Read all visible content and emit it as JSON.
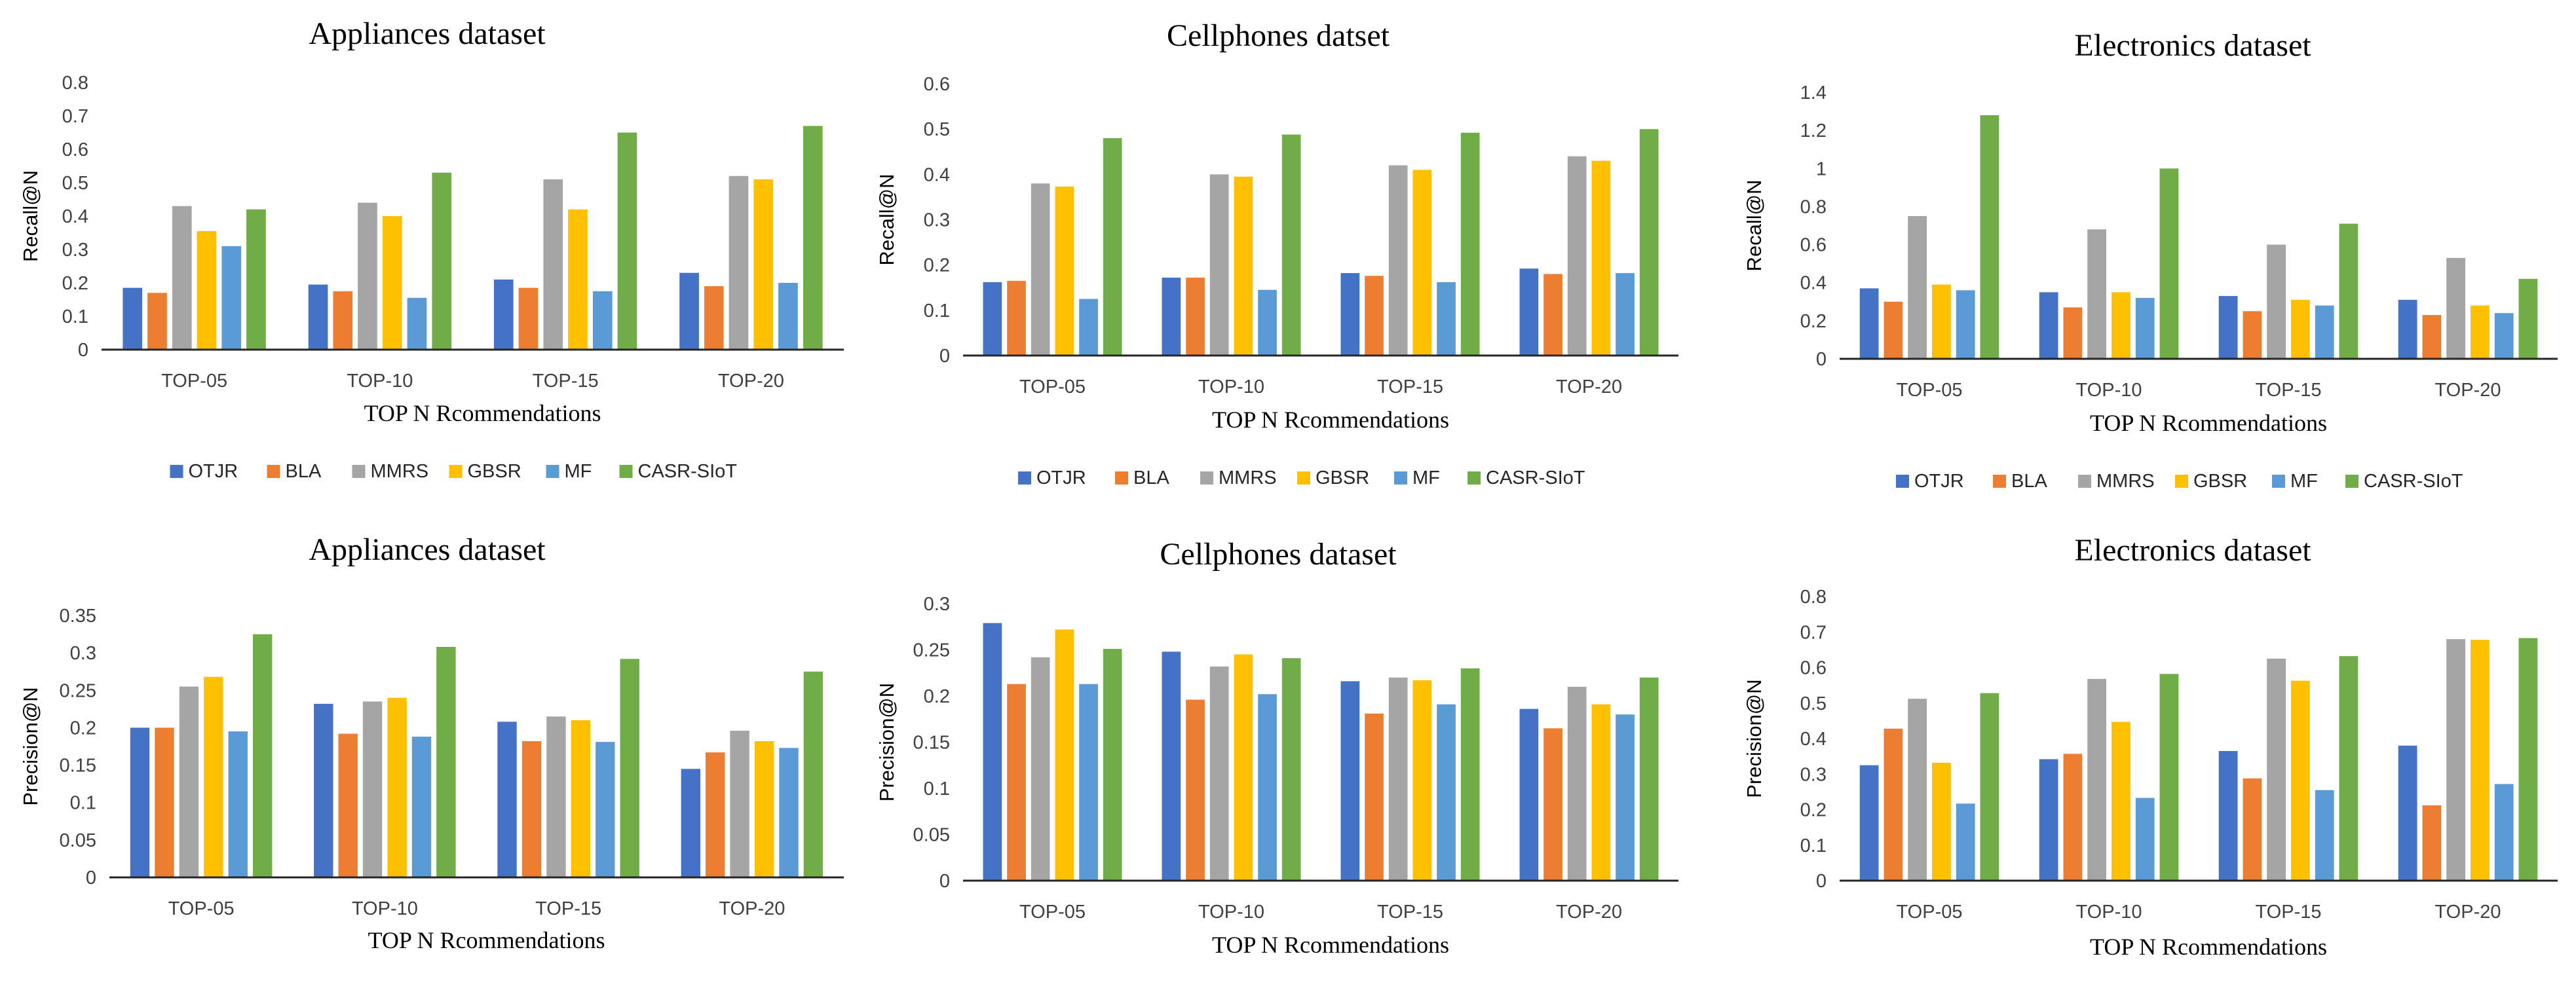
{
  "colors": {
    "OTJR": "#4472C4",
    "BLA": "#ED7D31",
    "MMRS": "#A5A5A5",
    "GBSR": "#FFC000",
    "MF": "#5B9BD5",
    "CASR-SIoT": "#70AD47"
  },
  "chart_data": [
    {
      "type": "bar",
      "title": "Appliances dataset",
      "xlabel": "TOP N Rcommendations",
      "ylabel": "Recall@N",
      "categories": [
        "TOP-05",
        "TOP-10",
        "TOP-15",
        "TOP-20"
      ],
      "yticks": [
        "0",
        "0.1",
        "0.2",
        "0.3",
        "0.4",
        "0.5",
        "0.6",
        "0.7",
        "0.8"
      ],
      "ylim": [
        0,
        0.8
      ],
      "grid": false,
      "legend": "bottom",
      "series": [
        {
          "name": "OTJR",
          "values": [
            0.185,
            0.195,
            0.21,
            0.23
          ]
        },
        {
          "name": "BLA",
          "values": [
            0.17,
            0.175,
            0.185,
            0.19
          ]
        },
        {
          "name": "MMRS",
          "values": [
            0.43,
            0.44,
            0.51,
            0.52
          ]
        },
        {
          "name": "GBSR",
          "values": [
            0.355,
            0.4,
            0.42,
            0.51
          ]
        },
        {
          "name": "MF",
          "values": [
            0.31,
            0.155,
            0.175,
            0.2
          ]
        },
        {
          "name": "CASR-SIoT",
          "values": [
            0.42,
            0.53,
            0.65,
            0.67
          ]
        }
      ]
    },
    {
      "type": "bar",
      "title": "Cellphones datset",
      "xlabel": "TOP N Rcommendations",
      "ylabel": "Recall@N",
      "categories": [
        "TOP-05",
        "TOP-10",
        "TOP-15",
        "TOP-20"
      ],
      "yticks": [
        "0",
        "0.1",
        "0.2",
        "0.3",
        "0.4",
        "0.5",
        "0.6"
      ],
      "ylim": [
        0,
        0.6
      ],
      "grid": false,
      "legend": "bottom",
      "series": [
        {
          "name": "OTJR",
          "values": [
            0.162,
            0.172,
            0.182,
            0.192
          ]
        },
        {
          "name": "BLA",
          "values": [
            0.165,
            0.172,
            0.176,
            0.18
          ]
        },
        {
          "name": "MMRS",
          "values": [
            0.38,
            0.4,
            0.42,
            0.44
          ]
        },
        {
          "name": "GBSR",
          "values": [
            0.373,
            0.395,
            0.41,
            0.43
          ]
        },
        {
          "name": "MF",
          "values": [
            0.125,
            0.145,
            0.162,
            0.182
          ]
        },
        {
          "name": "CASR-SIoT",
          "values": [
            0.48,
            0.488,
            0.492,
            0.5
          ]
        }
      ]
    },
    {
      "type": "bar",
      "title": "Electronics dataset",
      "xlabel": "TOP N Rcommendations",
      "ylabel": "Recall@N",
      "categories": [
        "TOP-05",
        "TOP-10",
        "TOP-15",
        "TOP-20"
      ],
      "yticks": [
        "0",
        "0.2",
        "0.4",
        "0.6",
        "0.8",
        "1",
        "1.2",
        "1.4"
      ],
      "ylim": [
        0,
        1.4
      ],
      "grid": false,
      "legend": "bottom",
      "series": [
        {
          "name": "OTJR",
          "values": [
            0.37,
            0.35,
            0.33,
            0.31
          ]
        },
        {
          "name": "BLA",
          "values": [
            0.3,
            0.27,
            0.25,
            0.23
          ]
        },
        {
          "name": "MMRS",
          "values": [
            0.75,
            0.68,
            0.6,
            0.53
          ]
        },
        {
          "name": "GBSR",
          "values": [
            0.39,
            0.35,
            0.31,
            0.28
          ]
        },
        {
          "name": "MF",
          "values": [
            0.36,
            0.32,
            0.28,
            0.24
          ]
        },
        {
          "name": "CASR-SIoT",
          "values": [
            1.28,
            1.0,
            0.71,
            0.42
          ]
        }
      ]
    },
    {
      "type": "bar",
      "title": "Appliances dataset",
      "xlabel": "TOP N Rcommendations",
      "ylabel": "Precision@N",
      "categories": [
        "TOP-05",
        "TOP-10",
        "TOP-15",
        "TOP-20"
      ],
      "yticks": [
        "0",
        "0.05",
        "0.1",
        "0.15",
        "0.2",
        "0.25",
        "0.3",
        "0.35"
      ],
      "ylim": [
        0,
        0.35
      ],
      "grid": false,
      "series": [
        {
          "name": "OTJR",
          "values": [
            0.2,
            0.232,
            0.208,
            0.145
          ]
        },
        {
          "name": "BLA",
          "values": [
            0.2,
            0.192,
            0.182,
            0.167
          ]
        },
        {
          "name": "MMRS",
          "values": [
            0.255,
            0.235,
            0.215,
            0.196
          ]
        },
        {
          "name": "GBSR",
          "values": [
            0.268,
            0.24,
            0.21,
            0.182
          ]
        },
        {
          "name": "MF",
          "values": [
            0.195,
            0.188,
            0.181,
            0.173
          ]
        },
        {
          "name": "CASR-SIoT",
          "values": [
            0.325,
            0.308,
            0.292,
            0.275
          ]
        }
      ]
    },
    {
      "type": "bar",
      "title": "Cellphones dataset",
      "xlabel": "TOP N Rcommendations",
      "ylabel": "Precision@N",
      "categories": [
        "TOP-05",
        "TOP-10",
        "TOP-15",
        "TOP-20"
      ],
      "yticks": [
        "0",
        "0.05",
        "0.1",
        "0.15",
        "0.2",
        "0.25",
        "0.3"
      ],
      "ylim": [
        0,
        0.3
      ],
      "grid": false,
      "series": [
        {
          "name": "OTJR",
          "values": [
            0.279,
            0.248,
            0.216,
            0.186
          ]
        },
        {
          "name": "BLA",
          "values": [
            0.213,
            0.196,
            0.181,
            0.165
          ]
        },
        {
          "name": "MMRS",
          "values": [
            0.242,
            0.232,
            0.22,
            0.21
          ]
        },
        {
          "name": "GBSR",
          "values": [
            0.272,
            0.245,
            0.217,
            0.191
          ]
        },
        {
          "name": "MF",
          "values": [
            0.213,
            0.202,
            0.191,
            0.18
          ]
        },
        {
          "name": "CASR-SIoT",
          "values": [
            0.251,
            0.241,
            0.23,
            0.22
          ]
        }
      ]
    },
    {
      "type": "bar",
      "title": "Electronics dataset",
      "xlabel": "TOP N Rcommendations",
      "ylabel": "Precision@N",
      "categories": [
        "TOP-05",
        "TOP-10",
        "TOP-15",
        "TOP-20"
      ],
      "yticks": [
        "0",
        "0.1",
        "0.2",
        "0.3",
        "0.4",
        "0.5",
        "0.6",
        "0.7",
        "0.8"
      ],
      "ylim": [
        0,
        0.8
      ],
      "grid": false,
      "series": [
        {
          "name": "OTJR",
          "values": [
            0.325,
            0.342,
            0.365,
            0.38
          ]
        },
        {
          "name": "BLA",
          "values": [
            0.428,
            0.357,
            0.288,
            0.212
          ]
        },
        {
          "name": "MMRS",
          "values": [
            0.512,
            0.568,
            0.625,
            0.68
          ]
        },
        {
          "name": "GBSR",
          "values": [
            0.332,
            0.447,
            0.563,
            0.678
          ]
        },
        {
          "name": "MF",
          "values": [
            0.217,
            0.233,
            0.255,
            0.272
          ]
        },
        {
          "name": "CASR-SIoT",
          "values": [
            0.528,
            0.582,
            0.632,
            0.683
          ]
        }
      ]
    }
  ]
}
